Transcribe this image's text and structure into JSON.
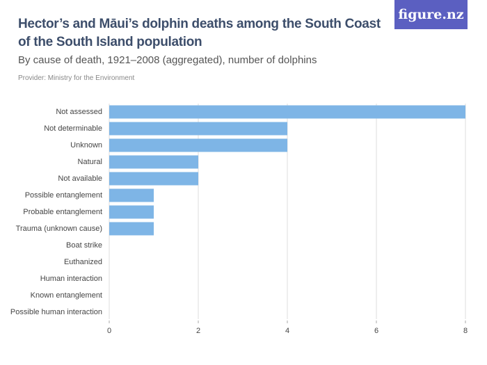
{
  "chart_data": {
    "type": "barh",
    "title": "Hector’s and Māui’s dolphin deaths among the South Coast of the South Island population",
    "subtitle": "By cause of death, 1921–2008 (aggregated), number of dolphins",
    "provider": "Provider: Ministry for the Environment",
    "logo": "figure.nz",
    "categories": [
      "Not assessed",
      "Not determinable",
      "Unknown",
      "Natural",
      "Not available",
      "Possible entanglement",
      "Probable entanglement",
      "Trauma (unknown cause)",
      "Boat strike",
      "Euthanized",
      "Human interaction",
      "Known entanglement",
      "Possible human interaction"
    ],
    "values": [
      8,
      4,
      4,
      2,
      2,
      1,
      1,
      1,
      0,
      0,
      0,
      0,
      0
    ],
    "color": "#7eb5e6",
    "xlim": [
      0,
      8
    ],
    "xticks": [
      0,
      2,
      4,
      6,
      8
    ],
    "grid": true
  }
}
